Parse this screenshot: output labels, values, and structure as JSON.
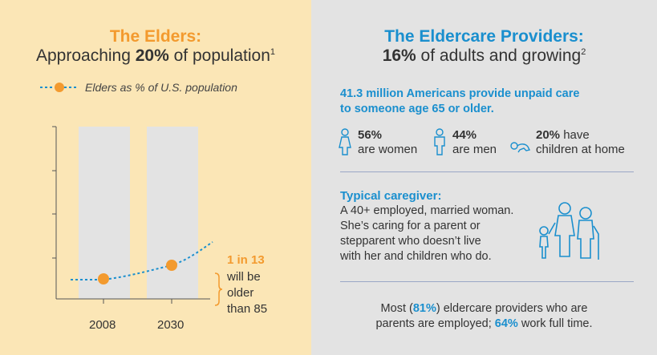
{
  "left": {
    "title": "The Elders:",
    "subtitle_pre": "Approaching ",
    "subtitle_bold": "20%",
    "subtitle_post": " of population",
    "subtitle_sup": "1",
    "legend_label": "Elders as % of U.S. population",
    "callout_highlight": "1 in 13",
    "callout_lines": [
      "will be",
      "older",
      "than 85"
    ]
  },
  "chart_data": {
    "type": "line",
    "series": [
      {
        "name": "Elders as % of U.S. population",
        "x": [
          "2008",
          "2030"
        ],
        "highlighted_points": [
          "2008",
          "2030"
        ]
      }
    ],
    "categories": [
      "2008",
      "2030"
    ],
    "tick_labels_x": [
      "2008",
      "2030"
    ],
    "colors": {
      "line": "#1a8fce",
      "points": "#f39a2e",
      "bars": "#e3e3e3"
    }
  },
  "right": {
    "title": "The Eldercare Providers:",
    "subtitle_bold": "16%",
    "subtitle_post": " of adults and growing",
    "subtitle_sup": "2",
    "headline_line1": "41.3 million Americans provide unpaid care",
    "headline_line2": "to someone age 65 or older.",
    "stats": [
      {
        "value": "56%",
        "label": "are women",
        "icon": "woman-icon"
      },
      {
        "value": "44%",
        "label": "are men",
        "icon": "man-icon"
      },
      {
        "value": "20%",
        "value_suffix": " have",
        "label": "children at home",
        "icon": "baby-icon"
      }
    ],
    "caregiver_head": "Typical caregiver:",
    "caregiver_lines": [
      "A 40+ employed, married woman.",
      "She’s caring for a parent or",
      "stepparent who doesn’t live",
      "with her and children who do."
    ],
    "footer_line1_pre": "Most (",
    "footer_line1_bold": "81%",
    "footer_line1_post": ") eldercare providers who are",
    "footer_line2_pre": "parents are employed; ",
    "footer_line2_bold": "64%",
    "footer_line2_post": " work full time."
  },
  "colors": {
    "orange": "#f39a2e",
    "blue": "#1a8fce",
    "left_bg": "#fbe6b6",
    "right_bg": "#e3e3e3"
  }
}
